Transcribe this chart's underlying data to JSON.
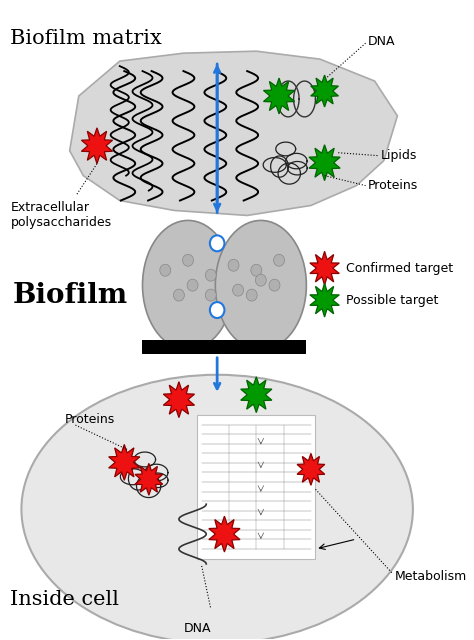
{
  "title_biofilm_matrix": "Biofilm matrix",
  "title_biofilm": "Biofilm",
  "title_inside_cell": "Inside cell",
  "label_dna_top": "DNA",
  "label_lipids": "Lipids",
  "label_proteins_top": "Proteins",
  "label_extracellular": "Extracellular\npolysaccharides",
  "label_proteins_cell": "Proteins",
  "label_dna_bottom": "DNA",
  "label_metabolism": "Metabolism",
  "legend_confirmed": "Confirmed target",
  "legend_possible": "Possible target",
  "bg_color": "#ffffff",
  "matrix_fill": "#d8d8d8",
  "biofilm_fill": "#c0c0c0",
  "cell_fill": "#e0e0e0",
  "confirmed_color": "#ee1111",
  "possible_color": "#009900",
  "arrow_color": "#2277dd",
  "text_color": "#000000",
  "figw": 4.74,
  "figh": 6.4,
  "dpi": 100
}
